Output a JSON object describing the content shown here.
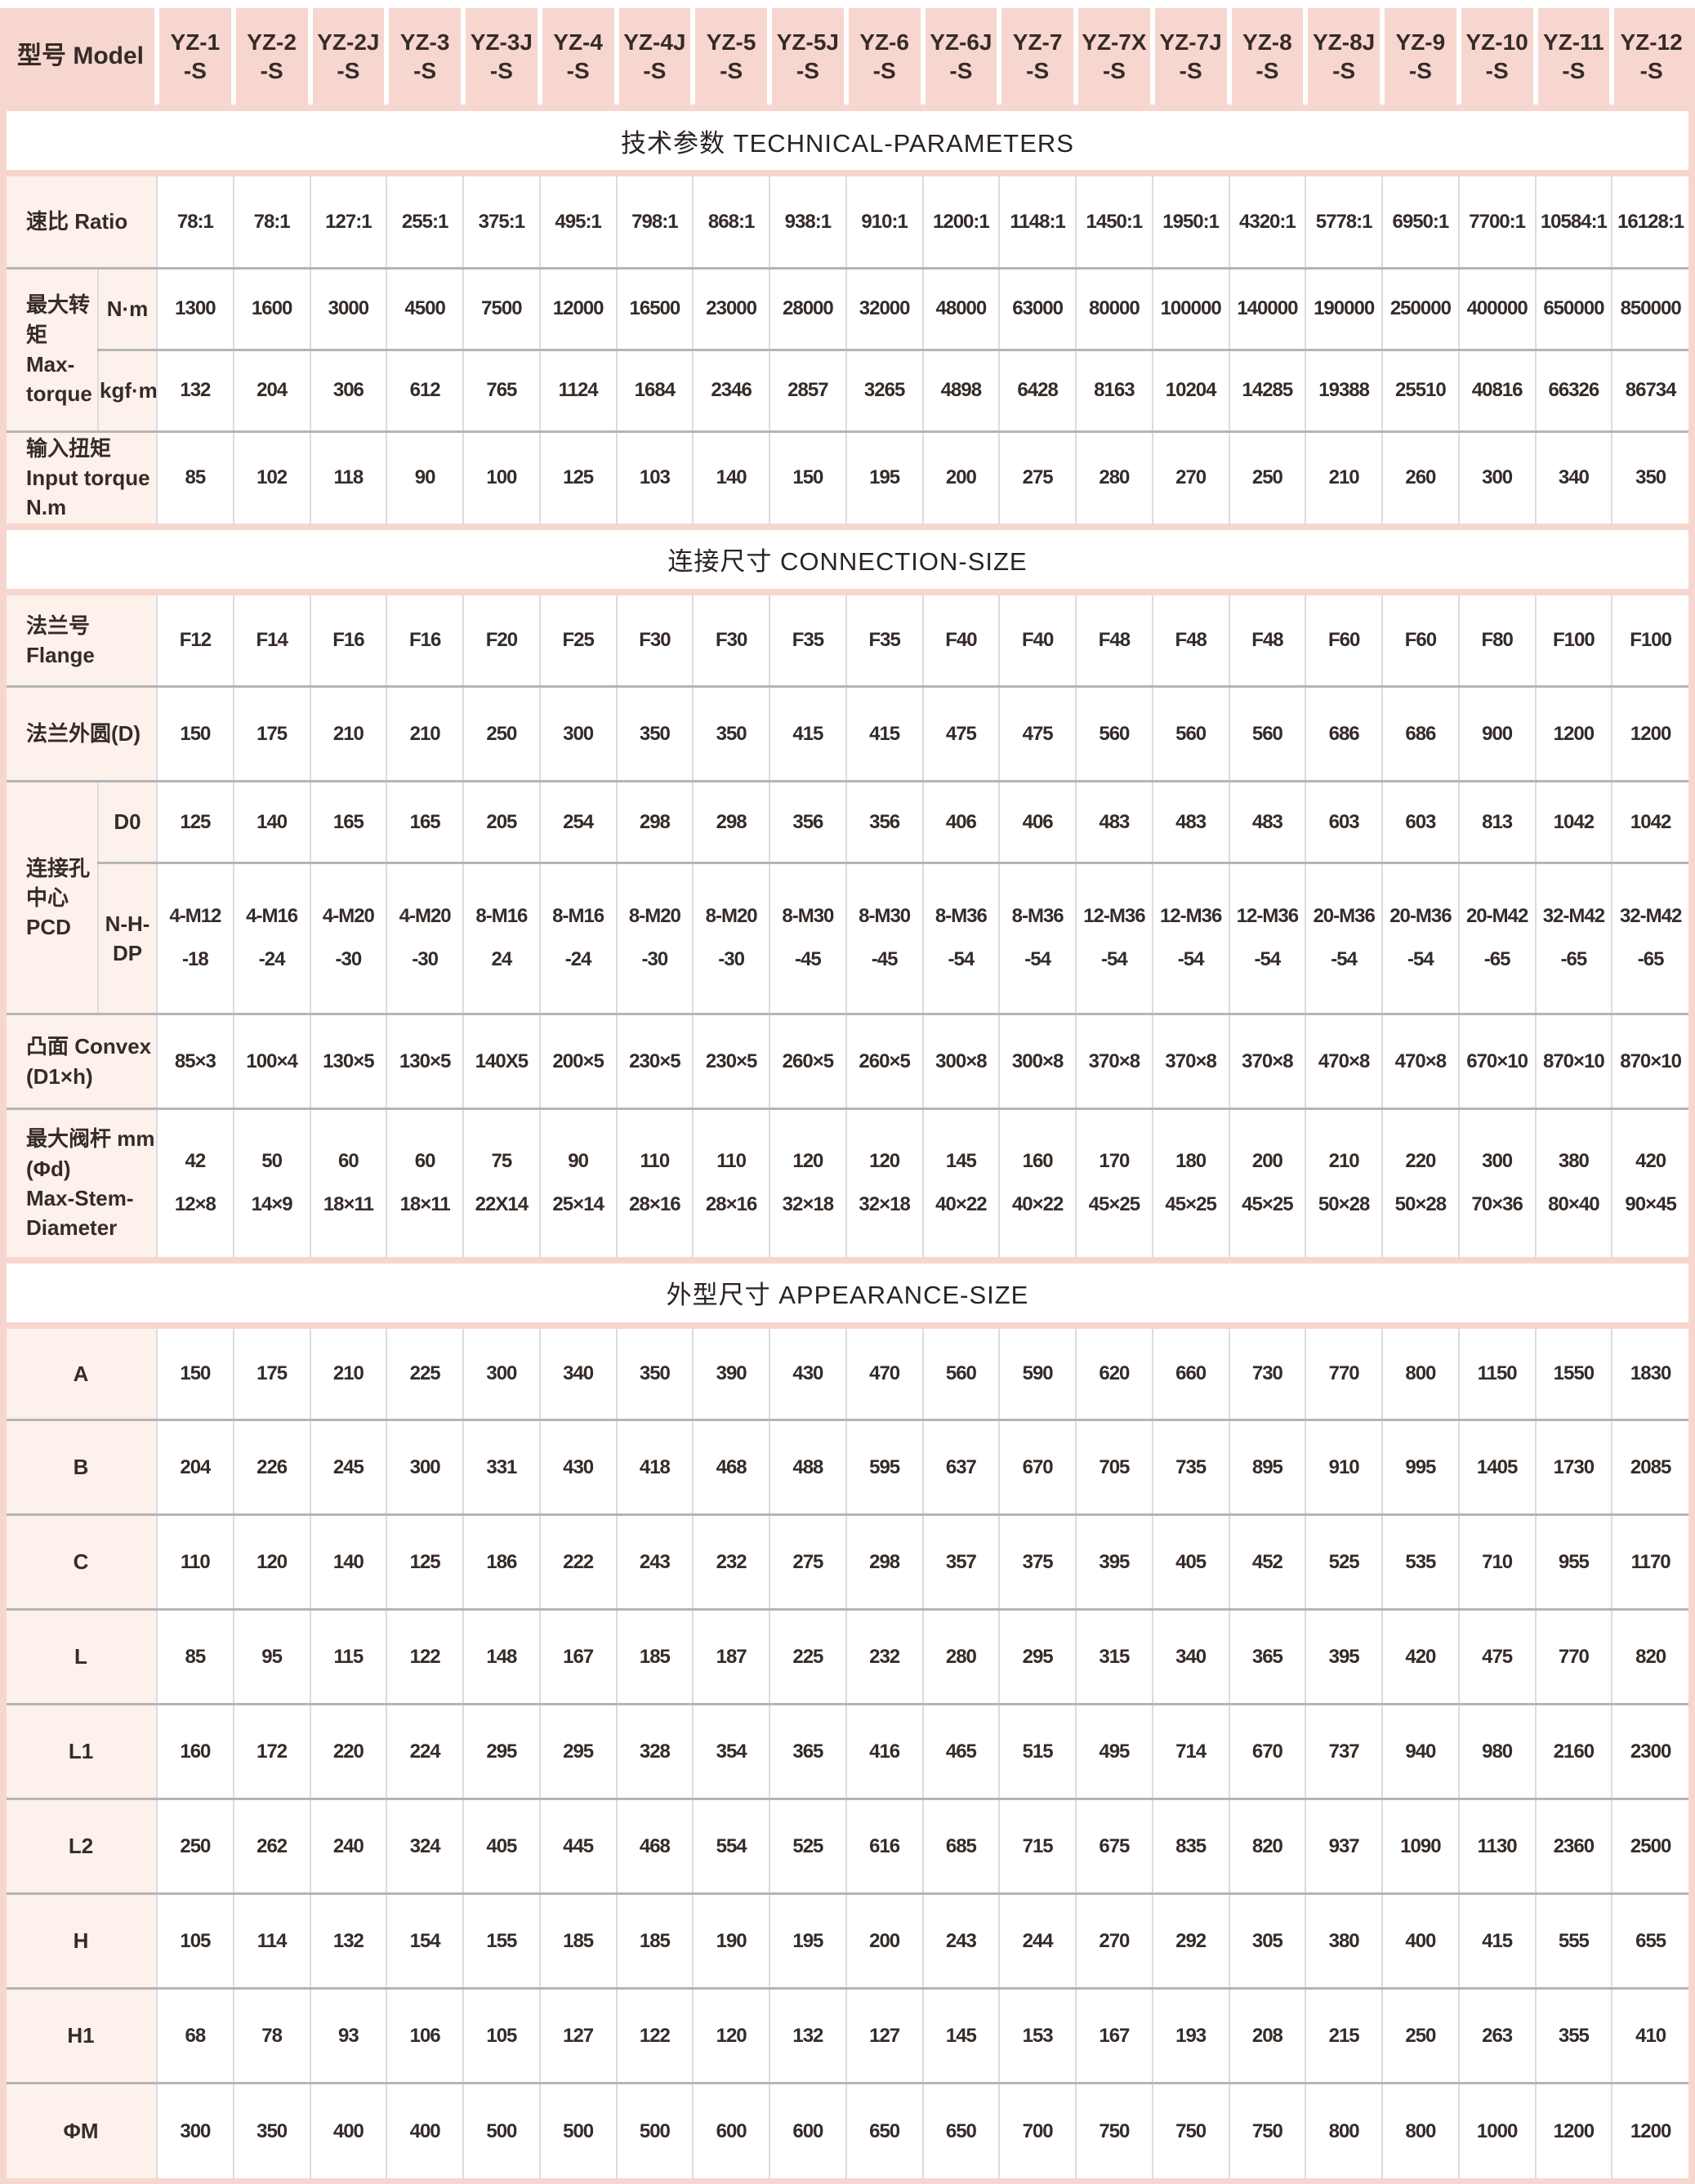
{
  "table": {
    "model_header": {
      "label": "型号 Model",
      "models": [
        "YZ-1\n-S",
        "YZ-2\n-S",
        "YZ-2J\n-S",
        "YZ-3\n-S",
        "YZ-3J\n-S",
        "YZ-4\n-S",
        "YZ-4J\n-S",
        "YZ-5\n-S",
        "YZ-5J\n-S",
        "YZ-6\n-S",
        "YZ-6J\n-S",
        "YZ-7\n-S",
        "YZ-7X\n-S",
        "YZ-7J\n-S",
        "YZ-8\n-S",
        "YZ-8J\n-S",
        "YZ-9\n-S",
        "YZ-10\n-S",
        "YZ-11\n-S",
        "YZ-12\n-S"
      ]
    },
    "sections": [
      {
        "type": "section",
        "title": "技术参数 TECHNICAL-PARAMETERS"
      },
      {
        "type": "row",
        "label": "速比 Ratio",
        "values": [
          "78:1",
          "78:1",
          "127:1",
          "255:1",
          "375:1",
          "495:1",
          "798:1",
          "868:1",
          "938:1",
          "910:1",
          "1200:1",
          "1148:1",
          "1450:1",
          "1950:1",
          "4320:1",
          "5778:1",
          "6950:1",
          "7700:1",
          "10584:1",
          "16128:1"
        ]
      },
      {
        "type": "group",
        "label": "最大转矩\nMax-torque",
        "subrows": [
          {
            "unit": "N·m",
            "values": [
              "1300",
              "1600",
              "3000",
              "4500",
              "7500",
              "12000",
              "16500",
              "23000",
              "28000",
              "32000",
              "48000",
              "63000",
              "80000",
              "100000",
              "140000",
              "190000",
              "250000",
              "400000",
              "650000",
              "850000"
            ]
          },
          {
            "unit": "kgf·m",
            "values": [
              "132",
              "204",
              "306",
              "612",
              "765",
              "1124",
              "1684",
              "2346",
              "2857",
              "3265",
              "4898",
              "6428",
              "8163",
              "10204",
              "14285",
              "19388",
              "25510",
              "40816",
              "66326",
              "86734"
            ]
          }
        ]
      },
      {
        "type": "row",
        "label": "输入扭矩\nInput torque N.m",
        "values": [
          "85",
          "102",
          "118",
          "90",
          "100",
          "125",
          "103",
          "140",
          "150",
          "195",
          "200",
          "275",
          "280",
          "270",
          "250",
          "210",
          "260",
          "300",
          "340",
          "350"
        ]
      },
      {
        "type": "section",
        "title": "连接尺寸 CONNECTION-SIZE"
      },
      {
        "type": "row",
        "label": "法兰号 Flange",
        "values": [
          "F12",
          "F14",
          "F16",
          "F16",
          "F20",
          "F25",
          "F30",
          "F30",
          "F35",
          "F35",
          "F40",
          "F40",
          "F48",
          "F48",
          "F48",
          "F60",
          "F60",
          "F80",
          "F100",
          "F100"
        ]
      },
      {
        "type": "row",
        "label": "法兰外圆(D)",
        "values": [
          "150",
          "175",
          "210",
          "210",
          "250",
          "300",
          "350",
          "350",
          "415",
          "415",
          "475",
          "475",
          "560",
          "560",
          "560",
          "686",
          "686",
          "900",
          "1200",
          "1200"
        ]
      },
      {
        "type": "group",
        "label": "连接孔中心\nPCD",
        "subrows": [
          {
            "unit": "D0",
            "values": [
              "125",
              "140",
              "165",
              "165",
              "205",
              "254",
              "298",
              "298",
              "356",
              "356",
              "406",
              "406",
              "483",
              "483",
              "483",
              "603",
              "603",
              "813",
              "1042",
              "1042"
            ]
          },
          {
            "unit": "N-H-DP",
            "values": [
              "4-M12\n-18",
              "4-M16\n-24",
              "4-M20\n-30",
              "4-M20\n-30",
              "8-M16\n24",
              "8-M16\n-24",
              "8-M20\n-30",
              "8-M20\n-30",
              "8-M30\n-45",
              "8-M30\n-45",
              "8-M36\n-54",
              "8-M36\n-54",
              "12-M36\n-54",
              "12-M36\n-54",
              "12-M36\n-54",
              "20-M36\n-54",
              "20-M36\n-54",
              "20-M42\n-65",
              "32-M42\n-65",
              "32-M42\n-65"
            ]
          }
        ]
      },
      {
        "type": "row",
        "label": "凸面 Convex (D1×h)",
        "values": [
          "85×3",
          "100×4",
          "130×5",
          "130×5",
          "140X5",
          "200×5",
          "230×5",
          "230×5",
          "260×5",
          "260×5",
          "300×8",
          "300×8",
          "370×8",
          "370×8",
          "370×8",
          "470×8",
          "470×8",
          "670×10",
          "870×10",
          "870×10"
        ]
      },
      {
        "type": "row",
        "label": "最大阀杆 mm (Φd)\nMax-Stem-Diameter",
        "values": [
          "42\n12×8",
          "50\n14×9",
          "60\n18×11",
          "60\n18×11",
          "75\n22X14",
          "90\n25×14",
          "110\n28×16",
          "110\n28×16",
          "120\n32×18",
          "120\n32×18",
          "145\n40×22",
          "160\n40×22",
          "170\n45×25",
          "180\n45×25",
          "200\n45×25",
          "210\n50×28",
          "220\n50×28",
          "300\n70×36",
          "380\n80×40",
          "420\n90×45"
        ]
      },
      {
        "type": "section",
        "title": "外型尺寸 APPEARANCE-SIZE"
      },
      {
        "type": "row",
        "label": "A",
        "values": [
          "150",
          "175",
          "210",
          "225",
          "300",
          "340",
          "350",
          "390",
          "430",
          "470",
          "560",
          "590",
          "620",
          "660",
          "730",
          "770",
          "800",
          "1150",
          "1550",
          "1830"
        ]
      },
      {
        "type": "row",
        "label": "B",
        "values": [
          "204",
          "226",
          "245",
          "300",
          "331",
          "430",
          "418",
          "468",
          "488",
          "595",
          "637",
          "670",
          "705",
          "735",
          "895",
          "910",
          "995",
          "1405",
          "1730",
          "2085"
        ]
      },
      {
        "type": "row",
        "label": "C",
        "values": [
          "110",
          "120",
          "140",
          "125",
          "186",
          "222",
          "243",
          "232",
          "275",
          "298",
          "357",
          "375",
          "395",
          "405",
          "452",
          "525",
          "535",
          "710",
          "955",
          "1170"
        ]
      },
      {
        "type": "row",
        "label": "L",
        "values": [
          "85",
          "95",
          "115",
          "122",
          "148",
          "167",
          "185",
          "187",
          "225",
          "232",
          "280",
          "295",
          "315",
          "340",
          "365",
          "395",
          "420",
          "475",
          "770",
          "820"
        ]
      },
      {
        "type": "row",
        "label": "L1",
        "values": [
          "160",
          "172",
          "220",
          "224",
          "295",
          "295",
          "328",
          "354",
          "365",
          "416",
          "465",
          "515",
          "495",
          "714",
          "670",
          "737",
          "940",
          "980",
          "2160",
          "2300"
        ]
      },
      {
        "type": "row",
        "label": "L2",
        "values": [
          "250",
          "262",
          "240",
          "324",
          "405",
          "445",
          "468",
          "554",
          "525",
          "616",
          "685",
          "715",
          "675",
          "835",
          "820",
          "937",
          "1090",
          "1130",
          "2360",
          "2500"
        ]
      },
      {
        "type": "row",
        "label": "H",
        "values": [
          "105",
          "114",
          "132",
          "154",
          "155",
          "185",
          "185",
          "190",
          "195",
          "200",
          "243",
          "244",
          "270",
          "292",
          "305",
          "380",
          "400",
          "415",
          "555",
          "655"
        ]
      },
      {
        "type": "row",
        "label": "H1",
        "values": [
          "68",
          "78",
          "93",
          "106",
          "105",
          "127",
          "122",
          "120",
          "132",
          "127",
          "145",
          "153",
          "167",
          "193",
          "208",
          "215",
          "250",
          "263",
          "355",
          "410"
        ]
      },
      {
        "type": "row",
        "label": "ΦM",
        "values": [
          "300",
          "350",
          "400",
          "400",
          "500",
          "500",
          "500",
          "600",
          "600",
          "650",
          "650",
          "700",
          "750",
          "750",
          "750",
          "800",
          "800",
          "1000",
          "1200",
          "1200"
        ]
      }
    ]
  },
  "colors": {
    "header_pink": "#f7d6cf",
    "label_pink": "#fdf1ec",
    "grid_vertical": "#dcdcdc",
    "grid_horizontal": "#b5b5b5",
    "text": "#352b28"
  }
}
